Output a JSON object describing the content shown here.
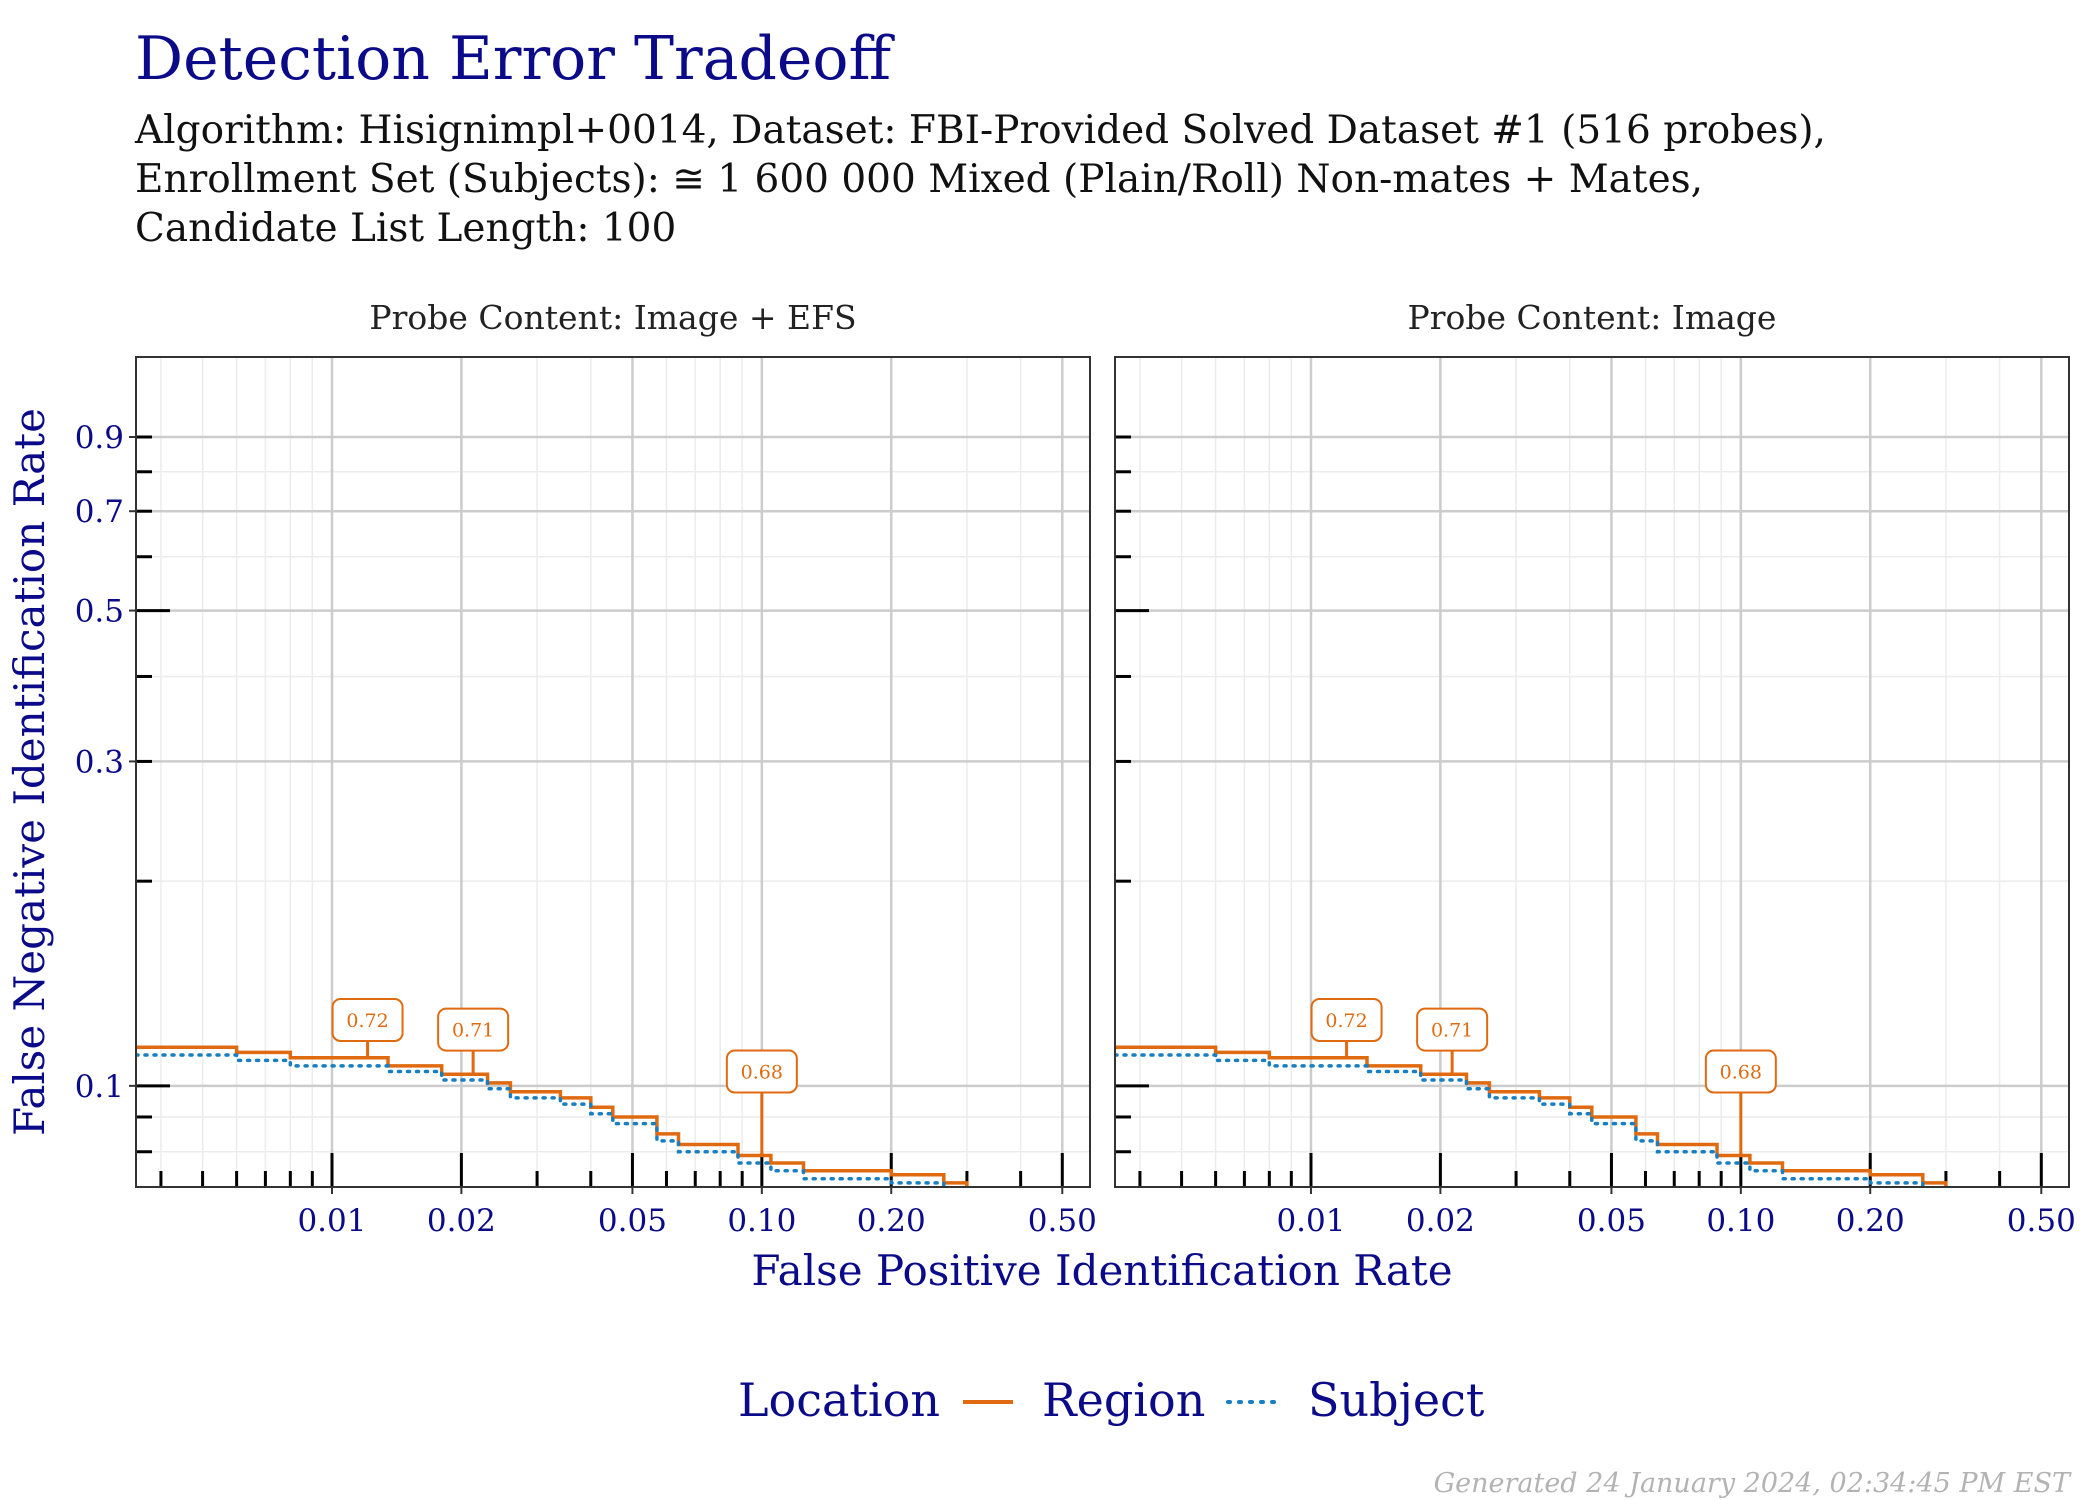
{
  "title": "Detection Error Tradeoff",
  "subtitle_lines": [
    "Algorithm: Hisignimpl+0014, Dataset: FBI-Provided Solved Dataset #1 (516 probes),",
    "Enrollment Set (Subjects): ≅ 1 600 000 Mixed (Plain/Roll) Non-mates + Mates,",
    "Candidate List Length: 100"
  ],
  "footer": "Generated 24 January 2024, 02:34:45 PM EST",
  "colors": {
    "title": "#0b0b8a",
    "region": "#e06a10",
    "subject": "#1a7fc0",
    "grid_major": "#cccccc",
    "grid_minor": "#ececec"
  },
  "chart_data": {
    "type": "line",
    "xlabel": "False Positive Identification Rate",
    "ylabel": "False Negative Identification Rate",
    "x_scale": "log",
    "y_scale": "log",
    "xlim": [
      0.0035,
      0.58
    ],
    "ylim": [
      0.071,
      1.18
    ],
    "x_ticks": [
      0.01,
      0.02,
      0.05,
      0.1,
      0.2,
      0.5
    ],
    "x_tick_labels": [
      "0.01",
      "0.02",
      "0.05",
      "0.10",
      "0.20",
      "0.50"
    ],
    "y_ticks": [
      0.1,
      0.3,
      0.5,
      0.7,
      0.9
    ],
    "y_tick_labels": [
      "0.1",
      "0.3",
      "0.5",
      "0.7",
      "0.9"
    ],
    "grid": true,
    "legend": {
      "title": "Location",
      "position": "bottom",
      "entries": [
        "Region",
        "Subject"
      ]
    },
    "panels": [
      {
        "name": "Probe Content: Image + EFS",
        "series": [
          {
            "name": "Region",
            "x": [
              0.0035,
              0.006,
              0.006,
              0.008,
              0.008,
              0.0135,
              0.0135,
              0.018,
              0.018,
              0.023,
              0.023,
              0.026,
              0.026,
              0.034,
              0.034,
              0.04,
              0.04,
              0.045,
              0.045,
              0.057,
              0.057,
              0.064,
              0.064,
              0.088,
              0.088,
              0.105,
              0.105,
              0.125,
              0.125,
              0.2,
              0.2,
              0.265,
              0.265,
              0.3,
              0.3,
              0.37,
              0.37,
              0.39
            ],
            "y": [
              0.114,
              0.114,
              0.112,
              0.112,
              0.11,
              0.11,
              0.107,
              0.107,
              0.104,
              0.104,
              0.101,
              0.101,
              0.098,
              0.098,
              0.096,
              0.096,
              0.093,
              0.093,
              0.09,
              0.09,
              0.085,
              0.085,
              0.082,
              0.082,
              0.079,
              0.079,
              0.077,
              0.077,
              0.075,
              0.075,
              0.074,
              0.074,
              0.072,
              0.072,
              0.07,
              0.07,
              0.069,
              0.069
            ]
          },
          {
            "name": "Subject",
            "x": [
              0.0035,
              0.006,
              0.006,
              0.008,
              0.008,
              0.0135,
              0.0135,
              0.018,
              0.018,
              0.023,
              0.023,
              0.026,
              0.026,
              0.034,
              0.034,
              0.04,
              0.04,
              0.045,
              0.045,
              0.057,
              0.057,
              0.064,
              0.064,
              0.088,
              0.088,
              0.105,
              0.105,
              0.125,
              0.125,
              0.2,
              0.2,
              0.265,
              0.265,
              0.3,
              0.3,
              0.37,
              0.37,
              0.39
            ],
            "y": [
              0.111,
              0.111,
              0.109,
              0.109,
              0.107,
              0.107,
              0.105,
              0.105,
              0.102,
              0.102,
              0.099,
              0.099,
              0.096,
              0.096,
              0.094,
              0.094,
              0.091,
              0.091,
              0.088,
              0.088,
              0.083,
              0.083,
              0.08,
              0.08,
              0.077,
              0.077,
              0.075,
              0.075,
              0.073,
              0.073,
              0.072,
              0.072,
              0.07,
              0.07,
              0.069,
              0.069,
              0.068,
              0.068
            ]
          }
        ],
        "annotations": [
          {
            "x": 0.0121,
            "y": 0.11,
            "label": "0.72",
            "label_y": 0.125
          },
          {
            "x": 0.0213,
            "y": 0.104,
            "label": "0.71",
            "label_y": 0.121
          },
          {
            "x": 0.1,
            "y": 0.079,
            "label": "0.68",
            "label_y": 0.105
          }
        ]
      },
      {
        "name": "Probe Content: Image",
        "series": [
          {
            "name": "Region",
            "x": [
              0.0035,
              0.006,
              0.006,
              0.008,
              0.008,
              0.0135,
              0.0135,
              0.018,
              0.018,
              0.023,
              0.023,
              0.026,
              0.026,
              0.034,
              0.034,
              0.04,
              0.04,
              0.045,
              0.045,
              0.057,
              0.057,
              0.064,
              0.064,
              0.088,
              0.088,
              0.105,
              0.105,
              0.125,
              0.125,
              0.2,
              0.2,
              0.265,
              0.265,
              0.3,
              0.3,
              0.37,
              0.37,
              0.39
            ],
            "y": [
              0.114,
              0.114,
              0.112,
              0.112,
              0.11,
              0.11,
              0.107,
              0.107,
              0.104,
              0.104,
              0.101,
              0.101,
              0.098,
              0.098,
              0.096,
              0.096,
              0.093,
              0.093,
              0.09,
              0.09,
              0.085,
              0.085,
              0.082,
              0.082,
              0.079,
              0.079,
              0.077,
              0.077,
              0.075,
              0.075,
              0.074,
              0.074,
              0.072,
              0.072,
              0.07,
              0.07,
              0.069,
              0.069
            ]
          },
          {
            "name": "Subject",
            "x": [
              0.0035,
              0.006,
              0.006,
              0.008,
              0.008,
              0.0135,
              0.0135,
              0.018,
              0.018,
              0.023,
              0.023,
              0.026,
              0.026,
              0.034,
              0.034,
              0.04,
              0.04,
              0.045,
              0.045,
              0.057,
              0.057,
              0.064,
              0.064,
              0.088,
              0.088,
              0.105,
              0.105,
              0.125,
              0.125,
              0.2,
              0.2,
              0.265,
              0.265,
              0.3,
              0.3,
              0.37,
              0.37,
              0.39
            ],
            "y": [
              0.111,
              0.111,
              0.109,
              0.109,
              0.107,
              0.107,
              0.105,
              0.105,
              0.102,
              0.102,
              0.099,
              0.099,
              0.096,
              0.096,
              0.094,
              0.094,
              0.091,
              0.091,
              0.088,
              0.088,
              0.083,
              0.083,
              0.08,
              0.08,
              0.077,
              0.077,
              0.075,
              0.075,
              0.073,
              0.073,
              0.072,
              0.072,
              0.07,
              0.07,
              0.069,
              0.069,
              0.068,
              0.068
            ]
          }
        ],
        "annotations": [
          {
            "x": 0.0121,
            "y": 0.11,
            "label": "0.72",
            "label_y": 0.125
          },
          {
            "x": 0.0213,
            "y": 0.104,
            "label": "0.71",
            "label_y": 0.121
          },
          {
            "x": 0.1,
            "y": 0.079,
            "label": "0.68",
            "label_y": 0.105
          }
        ]
      }
    ]
  }
}
